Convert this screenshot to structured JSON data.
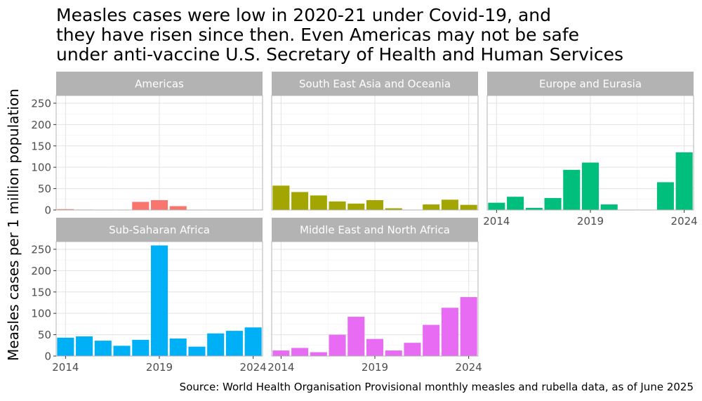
{
  "chart_data": {
    "type": "bar",
    "title_lines": [
      "Measles cases were low in 2020-21 under Covid-19, and",
      "they have risen since then. Even Americas may not be safe",
      "under anti-vaccine U.S. Secretary of Health and Human Services"
    ],
    "ylabel": "Measles cases per 1 million population",
    "xlabel": "",
    "caption": "Source: World Health Organisation Provisional monthly measles and rubella data, as of June 2025",
    "x": [
      2014,
      2015,
      2016,
      2017,
      2018,
      2019,
      2020,
      2021,
      2022,
      2023,
      2024
    ],
    "xlim": [
      2013.5,
      2024.5
    ],
    "ylim": [
      0,
      268
    ],
    "x_ticks": [
      2014,
      2019,
      2024
    ],
    "y_ticks": [
      0,
      50,
      100,
      150,
      200,
      250
    ],
    "grid": true,
    "legend": "none",
    "panels": [
      {
        "name": "Americas",
        "color": "#F8766D",
        "values": [
          2,
          1,
          0,
          0,
          19,
          23,
          9,
          0,
          0,
          0,
          0
        ]
      },
      {
        "name": "South East Asia and Oceania",
        "color": "#A3A500",
        "values": [
          57,
          42,
          34,
          20,
          15,
          23,
          4,
          0,
          13,
          24,
          12
        ]
      },
      {
        "name": "Europe and Eurasia",
        "color": "#00BF7D",
        "values": [
          17,
          31,
          5,
          28,
          94,
          111,
          13,
          0,
          0,
          65,
          135
        ]
      },
      {
        "name": "Sub-Saharan Africa",
        "color": "#00B0F6",
        "values": [
          43,
          46,
          36,
          24,
          38,
          259,
          41,
          22,
          53,
          59,
          67
        ]
      },
      {
        "name": "Middle East and North Africa",
        "color": "#E76BF3",
        "values": [
          13,
          19,
          9,
          50,
          92,
          40,
          13,
          31,
          73,
          113,
          138
        ]
      }
    ]
  }
}
